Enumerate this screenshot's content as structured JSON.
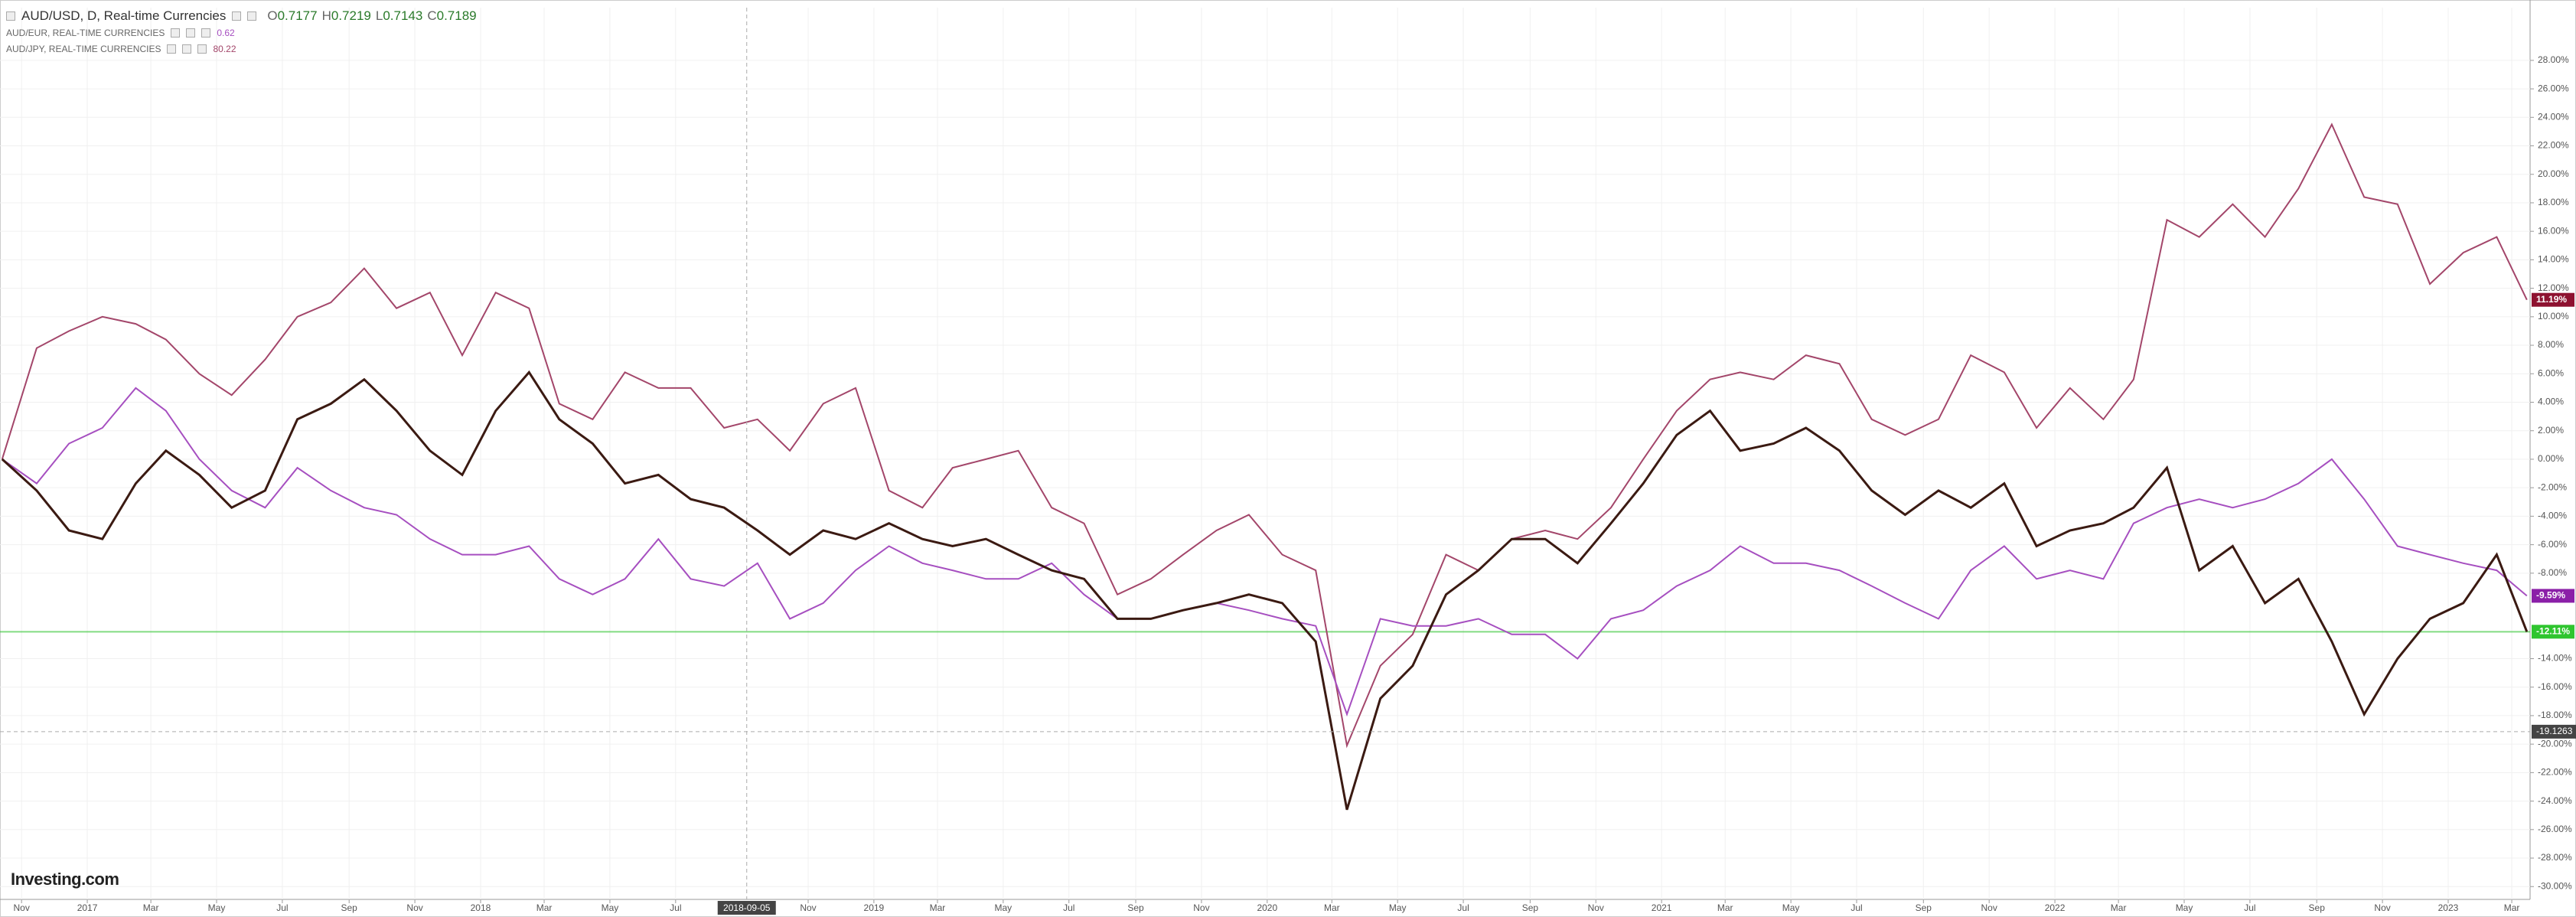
{
  "chart_data": {
    "type": "line",
    "grid": true,
    "ohlc": [
      {
        "key": "O",
        "value": 0.7177
      },
      {
        "key": "H",
        "value": 0.7219
      },
      {
        "key": "L",
        "value": 0.7143
      },
      {
        "key": "C",
        "value": 0.7189
      }
    ],
    "logo": "Investing.com",
    "x": [
      "2016-10-14",
      "2016-11-15",
      "2016-12-15",
      "2017-01-15",
      "2017-02-15",
      "2017-03-15",
      "2017-04-15",
      "2017-05-15",
      "2017-06-15",
      "2017-07-15",
      "2017-08-15",
      "2017-09-15",
      "2017-10-15",
      "2017-11-15",
      "2017-12-15",
      "2018-01-15",
      "2018-02-15",
      "2018-03-15",
      "2018-04-15",
      "2018-05-15",
      "2018-06-15",
      "2018-07-15",
      "2018-08-15",
      "2018-09-15",
      "2018-10-15",
      "2018-11-15",
      "2018-12-15",
      "2019-01-15",
      "2019-02-15",
      "2019-03-15",
      "2019-04-15",
      "2019-05-15",
      "2019-06-15",
      "2019-07-15",
      "2019-08-15",
      "2019-09-15",
      "2019-10-15",
      "2019-11-15",
      "2019-12-15",
      "2020-01-15",
      "2020-02-15",
      "2020-03-15",
      "2020-04-15",
      "2020-05-15",
      "2020-06-15",
      "2020-07-15",
      "2020-08-15",
      "2020-09-15",
      "2020-10-15",
      "2020-11-15",
      "2020-12-15",
      "2021-01-15",
      "2021-02-15",
      "2021-03-15",
      "2021-04-15",
      "2021-05-15",
      "2021-06-15",
      "2021-07-15",
      "2021-08-15",
      "2021-09-15",
      "2021-10-15",
      "2021-11-15",
      "2021-12-15",
      "2022-01-15",
      "2022-02-15",
      "2022-03-15",
      "2022-04-15",
      "2022-05-15",
      "2022-06-15",
      "2022-07-15",
      "2022-08-15",
      "2022-09-15",
      "2022-10-15",
      "2022-11-15",
      "2022-12-15",
      "2023-01-15",
      "2023-02-15",
      "2023-03-15"
    ],
    "series": [
      {
        "name": "AUD/USD, D, Real-time Currencies",
        "color": "#3b1a12",
        "tag_color": "#2fc52f",
        "last_label": "-12.11%",
        "values": [
          0,
          -2.2,
          -5,
          -5.6,
          -1.7,
          0.6,
          -1.1,
          -3.4,
          -2.2,
          2.8,
          3.9,
          5.6,
          3.4,
          0.6,
          -1.1,
          3.4,
          6.1,
          2.8,
          1.1,
          -1.7,
          -1.1,
          -2.8,
          -3.4,
          -5,
          -6.7,
          -5,
          -5.6,
          -4.5,
          -5.6,
          -6.1,
          -5.6,
          -6.7,
          -7.8,
          -8.4,
          -11.2,
          -11.2,
          -10.6,
          -10.1,
          -9.5,
          -10.1,
          -12.8,
          -24.6,
          -16.8,
          -14.5,
          -9.5,
          -7.8,
          -5.6,
          -5.6,
          -7.3,
          -4.5,
          -1.7,
          1.7,
          3.4,
          0.6,
          1.1,
          2.2,
          0.6,
          -2.2,
          -3.9,
          -2.2,
          -3.4,
          -1.7,
          -6.1,
          -5,
          -4.5,
          -3.4,
          -0.6,
          -7.8,
          -6.1,
          -10.1,
          -8.4,
          -12.8,
          -17.9,
          -14,
          -11.2,
          -10.1,
          -6.7,
          -12.11
        ]
      },
      {
        "name": "AUD/EUR, REAL-TIME CURRENCIES",
        "color": "#a64fc0",
        "tag_color": "#8b1fa8",
        "last_label": "-9.59%",
        "legend_value": 0.62,
        "values": [
          0,
          -1.7,
          1.1,
          2.2,
          5,
          3.4,
          0,
          -2.2,
          -3.4,
          -0.6,
          -2.2,
          -3.4,
          -3.9,
          -5.6,
          -6.7,
          -6.7,
          -6.1,
          -8.4,
          -9.5,
          -8.4,
          -5.6,
          -8.4,
          -8.9,
          -7.3,
          -11.2,
          -10.1,
          -7.8,
          -6.1,
          -7.3,
          -7.8,
          -8.4,
          -8.4,
          -7.3,
          -9.5,
          -11.2,
          -11.2,
          -10.6,
          -10.1,
          -10.6,
          -11.2,
          -11.7,
          -17.9,
          -11.2,
          -11.7,
          -11.7,
          -11.2,
          -12.3,
          -12.3,
          -14,
          -11.2,
          -10.6,
          -8.9,
          -7.8,
          -6.1,
          -7.3,
          -7.3,
          -7.8,
          -8.9,
          -10.1,
          -11.2,
          -7.8,
          -6.1,
          -8.4,
          -7.8,
          -8.4,
          -4.5,
          -3.4,
          -2.8,
          -3.4,
          -2.8,
          -1.7,
          0,
          -2.8,
          -6.1,
          -6.7,
          -7.3,
          -7.8,
          -9.59
        ]
      },
      {
        "name": "AUD/JPY, REAL-TIME CURRENCIES",
        "color": "#a3466a",
        "tag_color": "#8e1230",
        "last_label": "11.19%",
        "legend_value": 80.22,
        "values": [
          0,
          7.8,
          9,
          10,
          9.5,
          8.4,
          6,
          4.5,
          7,
          10,
          11,
          13.4,
          10.6,
          11.7,
          7.3,
          11.7,
          10.6,
          3.9,
          2.8,
          6.1,
          5,
          5,
          2.2,
          2.8,
          0.6,
          3.9,
          5,
          -2.2,
          -3.4,
          -0.6,
          0,
          0.6,
          -3.4,
          -4.5,
          -9.5,
          -8.4,
          -6.7,
          -5,
          -3.9,
          -6.7,
          -7.8,
          -20.1,
          -14.5,
          -12.3,
          -6.7,
          -7.8,
          -5.6,
          -5,
          -5.6,
          -3.4,
          0,
          3.4,
          5.6,
          6.1,
          5.6,
          7.3,
          6.7,
          2.8,
          1.7,
          2.8,
          7.3,
          6.1,
          2.2,
          5,
          2.8,
          5.6,
          16.8,
          15.6,
          17.9,
          15.6,
          19,
          23.5,
          18.4,
          17.9,
          12.3,
          14.5,
          15.6,
          11.19
        ]
      }
    ],
    "crosshair": {
      "x": "2018-09-05",
      "y": -19.1263
    },
    "xlim": [
      "2016-10-12",
      "2023-03-18"
    ],
    "xticks": [
      {
        "value": "2016-11-01",
        "label": "Nov"
      },
      {
        "value": "2017-01-01",
        "label": "2017"
      },
      {
        "value": "2017-03-01",
        "label": "Mar"
      },
      {
        "value": "2017-05-01",
        "label": "May"
      },
      {
        "value": "2017-07-01",
        "label": "Jul"
      },
      {
        "value": "2017-09-01",
        "label": "Sep"
      },
      {
        "value": "2017-11-01",
        "label": "Nov"
      },
      {
        "value": "2018-01-01",
        "label": "2018"
      },
      {
        "value": "2018-03-01",
        "label": "Mar"
      },
      {
        "value": "2018-05-01",
        "label": "May"
      },
      {
        "value": "2018-07-01",
        "label": "Jul"
      },
      {
        "value": "2018-11-01",
        "label": "Nov"
      },
      {
        "value": "2019-01-01",
        "label": "2019"
      },
      {
        "value": "2019-03-01",
        "label": "Mar"
      },
      {
        "value": "2019-05-01",
        "label": "May"
      },
      {
        "value": "2019-07-01",
        "label": "Jul"
      },
      {
        "value": "2019-09-01",
        "label": "Sep"
      },
      {
        "value": "2019-11-01",
        "label": "Nov"
      },
      {
        "value": "2020-01-01",
        "label": "2020"
      },
      {
        "value": "2020-03-01",
        "label": "Mar"
      },
      {
        "value": "2020-05-01",
        "label": "May"
      },
      {
        "value": "2020-07-01",
        "label": "Jul"
      },
      {
        "value": "2020-09-01",
        "label": "Sep"
      },
      {
        "value": "2020-11-01",
        "label": "Nov"
      },
      {
        "value": "2021-01-01",
        "label": "2021"
      },
      {
        "value": "2021-03-01",
        "label": "Mar"
      },
      {
        "value": "2021-05-01",
        "label": "May"
      },
      {
        "value": "2021-07-01",
        "label": "Jul"
      },
      {
        "value": "2021-09-01",
        "label": "Sep"
      },
      {
        "value": "2021-11-01",
        "label": "Nov"
      },
      {
        "value": "2022-01-01",
        "label": "2022"
      },
      {
        "value": "2022-03-01",
        "label": "Mar"
      },
      {
        "value": "2022-05-01",
        "label": "May"
      },
      {
        "value": "2022-07-01",
        "label": "Jul"
      },
      {
        "value": "2022-09-01",
        "label": "Sep"
      },
      {
        "value": "2022-11-01",
        "label": "Nov"
      },
      {
        "value": "2023-01-01",
        "label": "2023"
      },
      {
        "value": "2023-03-01",
        "label": "Mar"
      }
    ],
    "ylim": [
      -30.9,
      31.7
    ],
    "yticks": [
      {
        "value": 28,
        "label": "28.00%"
      },
      {
        "value": 26,
        "label": "26.00%"
      },
      {
        "value": 24,
        "label": "24.00%"
      },
      {
        "value": 22,
        "label": "22.00%"
      },
      {
        "value": 20,
        "label": "20.00%"
      },
      {
        "value": 18,
        "label": "18.00%"
      },
      {
        "value": 16,
        "label": "16.00%"
      },
      {
        "value": 14,
        "label": "14.00%"
      },
      {
        "value": 12,
        "label": "12.00%"
      },
      {
        "value": 10,
        "label": "10.00%"
      },
      {
        "value": 8,
        "label": "8.00%"
      },
      {
        "value": 6,
        "label": "6.00%"
      },
      {
        "value": 4,
        "label": "4.00%"
      },
      {
        "value": 2,
        "label": "2.00%"
      },
      {
        "value": 0,
        "label": "0.00%"
      },
      {
        "value": -2,
        "label": "-2.00%"
      },
      {
        "value": -4,
        "label": "-4.00%"
      },
      {
        "value": -6,
        "label": "-6.00%"
      },
      {
        "value": -8,
        "label": "-8.00%"
      },
      {
        "value": -14,
        "label": "-14.00%"
      },
      {
        "value": -16,
        "label": "-16.00%"
      },
      {
        "value": -18,
        "label": "-18.00%"
      },
      {
        "value": -20,
        "label": "-20.00%"
      },
      {
        "value": -22,
        "label": "-22.00%"
      },
      {
        "value": -24,
        "label": "-24.00%"
      },
      {
        "value": -26,
        "label": "-26.00%"
      },
      {
        "value": -28,
        "label": "-28.00%"
      },
      {
        "value": -30,
        "label": "-30.00%"
      }
    ]
  }
}
